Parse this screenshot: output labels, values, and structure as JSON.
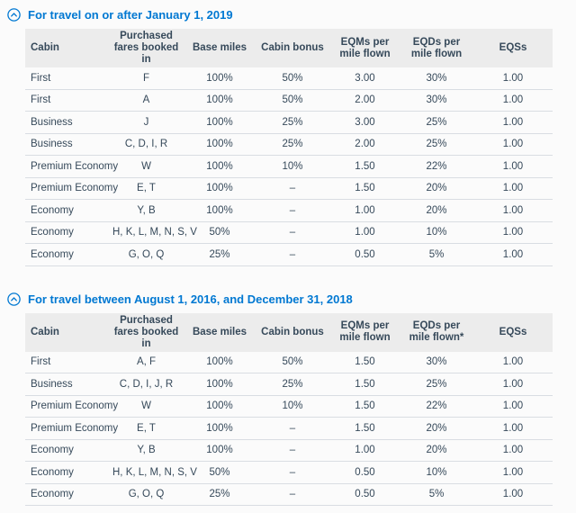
{
  "colors": {
    "accent": "#0078d2",
    "text": "#36495a",
    "header_row_bg": "#ececec",
    "row_border": "#d9dde2",
    "page_bg": "#fbfbfb"
  },
  "sections": [
    {
      "title": "For travel on or after January 1, 2019",
      "collapse_icon": "chevron-up-circle-icon",
      "columns": [
        "Cabin",
        "Purchased fares booked in",
        "Base miles",
        "Cabin bonus",
        "EQMs per mile flown",
        "EQDs per mile flown",
        "EQSs"
      ],
      "rows": [
        [
          "First",
          "F",
          "100%",
          "50%",
          "3.00",
          "30%",
          "1.00"
        ],
        [
          "First",
          "A",
          "100%",
          "50%",
          "2.00",
          "30%",
          "1.00"
        ],
        [
          "Business",
          "J",
          "100%",
          "25%",
          "3.00",
          "25%",
          "1.00"
        ],
        [
          "Business",
          "C, D, I, R",
          "100%",
          "25%",
          "2.00",
          "25%",
          "1.00"
        ],
        [
          "Premium Economy",
          "W",
          "100%",
          "10%",
          "1.50",
          "22%",
          "1.00"
        ],
        [
          "Premium Economy",
          "E, T",
          "100%",
          "–",
          "1.50",
          "20%",
          "1.00"
        ],
        [
          "Economy",
          "Y, B",
          "100%",
          "–",
          "1.00",
          "20%",
          "1.00"
        ],
        [
          "Economy",
          "H, K, L, M, N, S, V",
          "50%",
          "–",
          "1.00",
          "10%",
          "1.00"
        ],
        [
          "Economy",
          "G, O, Q",
          "25%",
          "–",
          "0.50",
          "5%",
          "1.00"
        ]
      ]
    },
    {
      "title": "For travel between August 1, 2016, and December 31, 2018",
      "collapse_icon": "chevron-up-circle-icon",
      "columns": [
        "Cabin",
        "Purchased fares booked in",
        "Base miles",
        "Cabin bonus",
        "EQMs per mile flown",
        "EQDs per mile flown*",
        "EQSs"
      ],
      "rows": [
        [
          "First",
          "A, F",
          "100%",
          "50%",
          "1.50",
          "30%",
          "1.00"
        ],
        [
          "Business",
          "C, D, I, J, R",
          "100%",
          "25%",
          "1.50",
          "25%",
          "1.00"
        ],
        [
          "Premium Economy",
          "W",
          "100%",
          "10%",
          "1.50",
          "22%",
          "1.00"
        ],
        [
          "Premium Economy",
          "E, T",
          "100%",
          "–",
          "1.50",
          "20%",
          "1.00"
        ],
        [
          "Economy",
          "Y, B",
          "100%",
          "–",
          "1.00",
          "20%",
          "1.00"
        ],
        [
          "Economy",
          "H, K, L, M, N, S, V",
          "50%",
          "–",
          "0.50",
          "10%",
          "1.00"
        ],
        [
          "Economy",
          "G, O, Q",
          "25%",
          "–",
          "0.50",
          "5%",
          "1.00"
        ]
      ]
    }
  ]
}
